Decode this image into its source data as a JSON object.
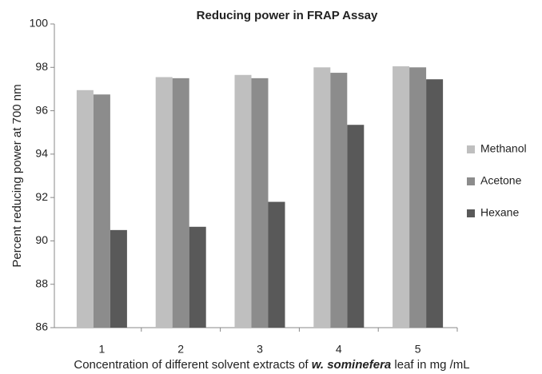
{
  "chart_data": {
    "type": "bar",
    "title": "Reducing power in FRAP Assay",
    "ylabel": "Percent reducing power at 700 nm",
    "xlabel": [
      "Concentration  of different solvent extracts of ",
      "w. sominefera",
      " leaf  in mg /mL"
    ],
    "categories": [
      "1",
      "2",
      "3",
      "4",
      "5"
    ],
    "series": [
      {
        "name": "Methanol",
        "color": "#bfbfbf",
        "values": [
          96.95,
          97.55,
          97.65,
          98.0,
          98.05
        ]
      },
      {
        "name": "Acetone",
        "color": "#8c8c8c",
        "values": [
          96.75,
          97.5,
          97.5,
          97.75,
          98.0
        ]
      },
      {
        "name": "Hexane",
        "color": "#595959",
        "values": [
          90.5,
          90.65,
          91.8,
          95.35,
          97.45
        ]
      }
    ],
    "ylim": [
      86,
      100
    ],
    "yticks": [
      86,
      88,
      90,
      92,
      94,
      96,
      98,
      100
    ],
    "grid": false,
    "legend": "right"
  }
}
